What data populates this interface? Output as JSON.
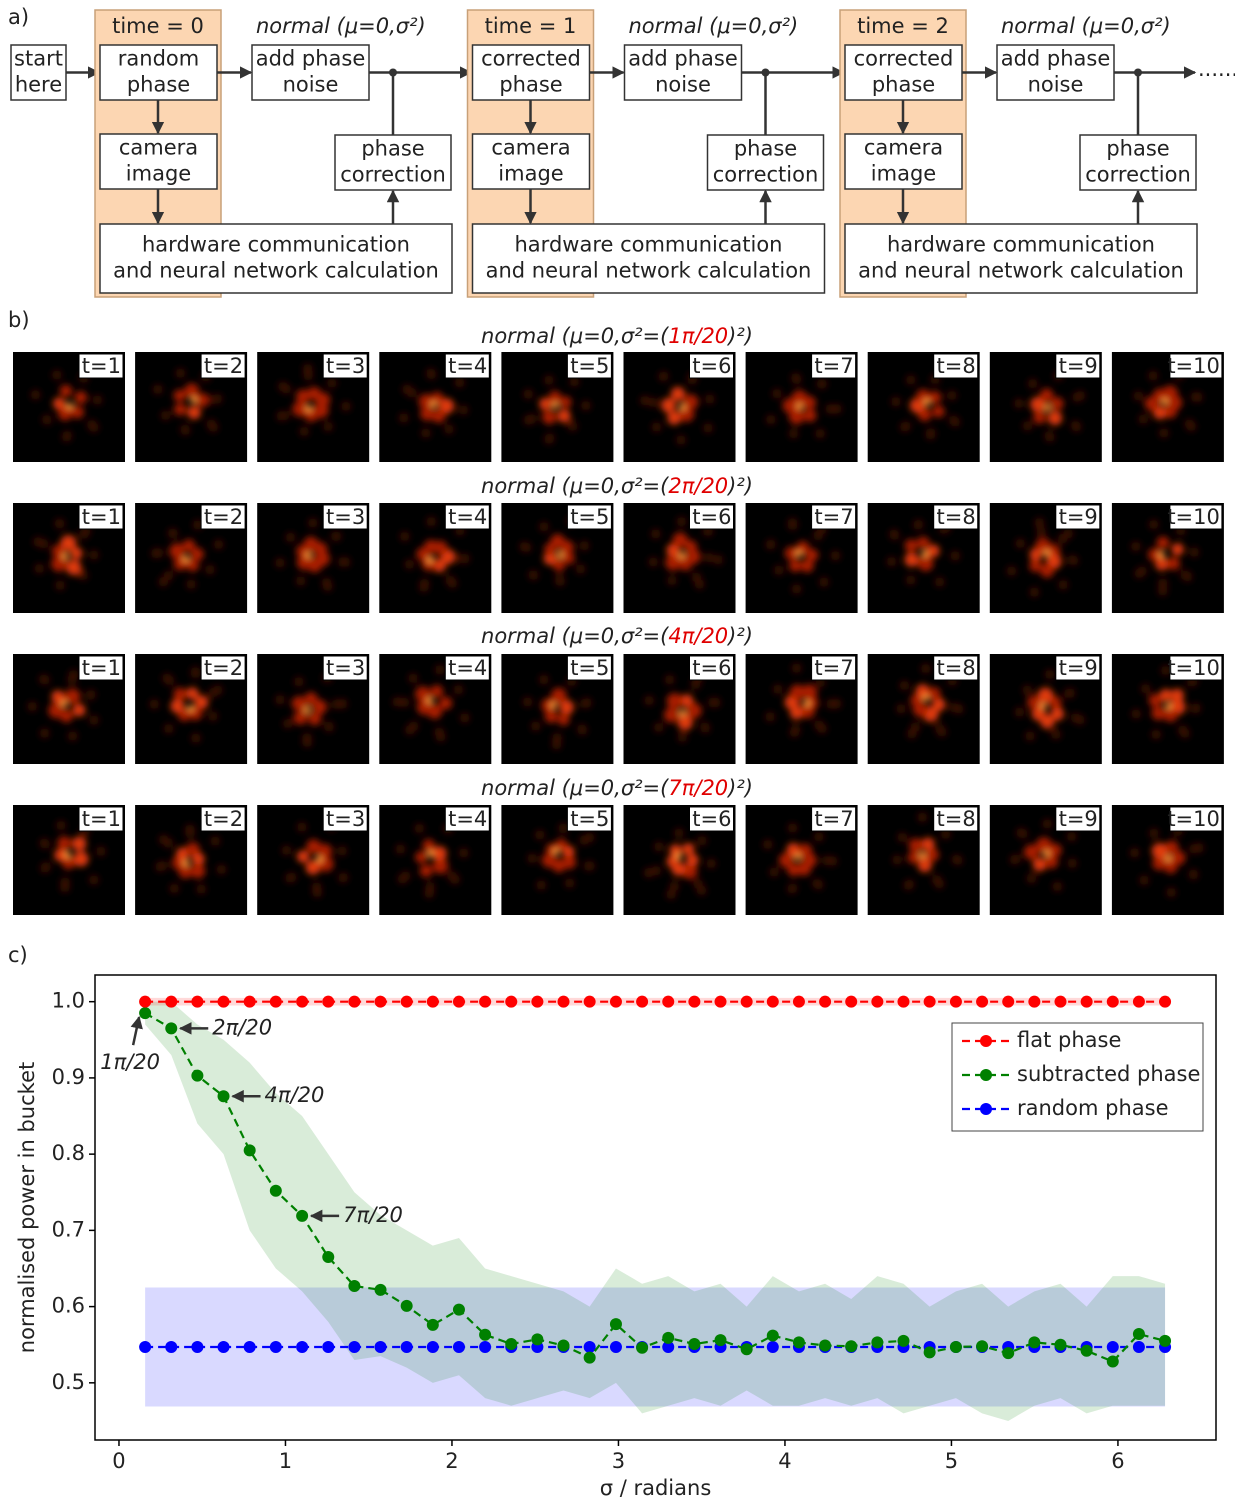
{
  "panel_labels": [
    "a)",
    "b)",
    "c)"
  ],
  "diagram": {
    "start": [
      "start",
      "here"
    ],
    "blocks": [
      {
        "time": "time = 0",
        "input": [
          "random",
          "phase"
        ],
        "camera": [
          "camera",
          "image"
        ],
        "noise_label": "normal (μ=0,σ²)",
        "noise": [
          "add phase",
          "noise"
        ],
        "correction": [
          "phase",
          "correction"
        ],
        "compute": [
          "hardware communication",
          "and neural network calculation"
        ]
      },
      {
        "time": "time = 1",
        "input": [
          "corrected",
          "phase"
        ],
        "camera": [
          "camera",
          "image"
        ],
        "noise_label": "normal (μ=0,σ²)",
        "noise": [
          "add phase",
          "noise"
        ],
        "correction": [
          "phase",
          "correction"
        ],
        "compute": [
          "hardware communication",
          "and neural network calculation"
        ]
      },
      {
        "time": "time = 2",
        "input": [
          "corrected",
          "phase"
        ],
        "camera": [
          "camera",
          "image"
        ],
        "noise_label": "normal (μ=0,σ²)",
        "noise": [
          "add phase",
          "noise"
        ],
        "correction": [
          "phase",
          "correction"
        ],
        "compute": [
          "hardware communication",
          "and neural network calculation"
        ]
      }
    ],
    "continuation": "......"
  },
  "images": {
    "rows": [
      {
        "title": [
          "normal (μ=0,σ²=(",
          "1π/20",
          ")²)"
        ]
      },
      {
        "title": [
          "normal (μ=0,σ²=(",
          "2π/20",
          ")²)"
        ]
      },
      {
        "title": [
          "normal (μ=0,σ²=(",
          "4π/20",
          ")²)"
        ]
      },
      {
        "title": [
          "normal (μ=0,σ²=(",
          "7π/20",
          ")²)"
        ]
      }
    ],
    "frame_labels": [
      "t=1",
      "t=2",
      "t=3",
      "t=4",
      "t=5",
      "t=6",
      "t=7",
      "t=8",
      "t=9",
      "t=10"
    ]
  },
  "chart_data": {
    "type": "line",
    "xlabel": "σ / radians",
    "ylabel": "normalised power in bucket",
    "xlim": [
      -0.144,
      6.589
    ],
    "ylim": [
      0.425,
      1.035
    ],
    "xticks": [
      0,
      1,
      2,
      3,
      4,
      5,
      6
    ],
    "yticks": [
      0.5,
      0.6,
      0.7,
      0.8,
      0.9,
      {
        "value": 1,
        "label": "1.0"
      }
    ],
    "legend": "upper right",
    "annotations": [
      "1π/20",
      "2π/20",
      "4π/20",
      "7π/20"
    ],
    "x": [
      0.157,
      0.314,
      0.471,
      0.628,
      0.785,
      0.942,
      1.1,
      1.257,
      1.414,
      1.571,
      1.728,
      1.885,
      2.042,
      2.199,
      2.356,
      2.513,
      2.67,
      2.827,
      2.985,
      3.142,
      3.299,
      3.456,
      3.613,
      3.77,
      3.927,
      4.084,
      4.241,
      4.398,
      4.555,
      4.712,
      4.869,
      5.027,
      5.184,
      5.341,
      5.498,
      5.655,
      5.812,
      5.969,
      6.126,
      6.283
    ],
    "series": [
      {
        "name": "flat phase",
        "color": "#ff0000",
        "values": [
          1,
          1,
          1,
          1,
          1,
          1,
          1,
          1,
          1,
          1,
          1,
          1,
          1,
          1,
          1,
          1,
          1,
          1,
          1,
          1,
          1,
          1,
          1,
          1,
          1,
          1,
          1,
          1,
          1,
          1,
          1,
          1,
          1,
          1,
          1,
          1,
          1,
          1,
          1,
          1
        ],
        "lower": [
          0.995,
          0.995,
          0.995,
          0.995,
          0.995,
          0.995,
          0.995,
          0.995,
          0.995,
          0.995,
          0.995,
          0.995,
          0.995,
          0.995,
          0.995,
          0.995,
          0.995,
          0.995,
          0.995,
          0.995,
          0.995,
          0.995,
          0.995,
          0.995,
          0.995,
          0.995,
          0.995,
          0.995,
          0.995,
          0.995,
          0.995,
          0.995,
          0.995,
          0.995,
          0.995,
          0.995,
          0.995,
          0.995,
          0.995,
          0.995
        ],
        "upper": [
          1.005,
          1.005,
          1.005,
          1.005,
          1.005,
          1.005,
          1.005,
          1.005,
          1.005,
          1.005,
          1.005,
          1.005,
          1.005,
          1.005,
          1.005,
          1.005,
          1.005,
          1.005,
          1.005,
          1.005,
          1.005,
          1.005,
          1.005,
          1.005,
          1.005,
          1.005,
          1.005,
          1.005,
          1.005,
          1.005,
          1.005,
          1.005,
          1.005,
          1.005,
          1.005,
          1.005,
          1.005,
          1.005,
          1.005,
          1.005
        ]
      },
      {
        "name": "subtracted phase",
        "color": "#008000",
        "values": [
          0.985,
          0.965,
          0.903,
          0.876,
          0.805,
          0.752,
          0.719,
          0.665,
          0.627,
          0.622,
          0.601,
          0.576,
          0.596,
          0.563,
          0.551,
          0.557,
          0.549,
          0.533,
          0.577,
          0.546,
          0.559,
          0.551,
          0.556,
          0.544,
          0.562,
          0.553,
          0.549,
          0.548,
          0.553,
          0.555,
          0.54,
          0.547,
          0.548,
          0.539,
          0.553,
          0.55,
          0.542,
          0.528,
          0.564,
          0.555
        ],
        "lower": [
          0.97,
          0.93,
          0.84,
          0.8,
          0.7,
          0.65,
          0.62,
          0.58,
          0.53,
          0.535,
          0.52,
          0.5,
          0.51,
          0.48,
          0.47,
          0.48,
          0.49,
          0.48,
          0.5,
          0.46,
          0.47,
          0.48,
          0.47,
          0.49,
          0.47,
          0.47,
          0.48,
          0.47,
          0.48,
          0.46,
          0.47,
          0.48,
          0.46,
          0.45,
          0.47,
          0.48,
          0.46,
          0.47,
          0.47,
          0.47
        ],
        "upper": [
          1,
          1,
          0.97,
          0.95,
          0.92,
          0.88,
          0.85,
          0.8,
          0.75,
          0.72,
          0.7,
          0.68,
          0.69,
          0.65,
          0.64,
          0.63,
          0.62,
          0.6,
          0.65,
          0.63,
          0.64,
          0.62,
          0.63,
          0.6,
          0.64,
          0.62,
          0.63,
          0.61,
          0.64,
          0.63,
          0.6,
          0.62,
          0.63,
          0.6,
          0.62,
          0.63,
          0.6,
          0.64,
          0.64,
          0.63
        ]
      },
      {
        "name": "random phase",
        "color": "#0000ff",
        "values": [
          0.547,
          0.547,
          0.547,
          0.547,
          0.547,
          0.547,
          0.547,
          0.547,
          0.547,
          0.547,
          0.547,
          0.547,
          0.547,
          0.547,
          0.547,
          0.547,
          0.547,
          0.547,
          0.547,
          0.547,
          0.547,
          0.547,
          0.547,
          0.547,
          0.547,
          0.547,
          0.547,
          0.547,
          0.547,
          0.547,
          0.547,
          0.547,
          0.547,
          0.547,
          0.547,
          0.547,
          0.547,
          0.547,
          0.547,
          0.547
        ],
        "lower": [
          0.469,
          0.469,
          0.469,
          0.469,
          0.469,
          0.469,
          0.469,
          0.469,
          0.469,
          0.469,
          0.469,
          0.469,
          0.469,
          0.469,
          0.469,
          0.469,
          0.469,
          0.469,
          0.469,
          0.469,
          0.469,
          0.469,
          0.469,
          0.469,
          0.469,
          0.469,
          0.469,
          0.469,
          0.469,
          0.469,
          0.469,
          0.469,
          0.469,
          0.469,
          0.469,
          0.469,
          0.469,
          0.469,
          0.469,
          0.469
        ],
        "upper": [
          0.625,
          0.625,
          0.625,
          0.625,
          0.625,
          0.625,
          0.625,
          0.625,
          0.625,
          0.625,
          0.625,
          0.625,
          0.625,
          0.625,
          0.625,
          0.625,
          0.625,
          0.625,
          0.625,
          0.625,
          0.625,
          0.625,
          0.625,
          0.625,
          0.625,
          0.625,
          0.625,
          0.625,
          0.625,
          0.625,
          0.625,
          0.625,
          0.625,
          0.625,
          0.625,
          0.625,
          0.625,
          0.625,
          0.625,
          0.625
        ]
      }
    ]
  }
}
